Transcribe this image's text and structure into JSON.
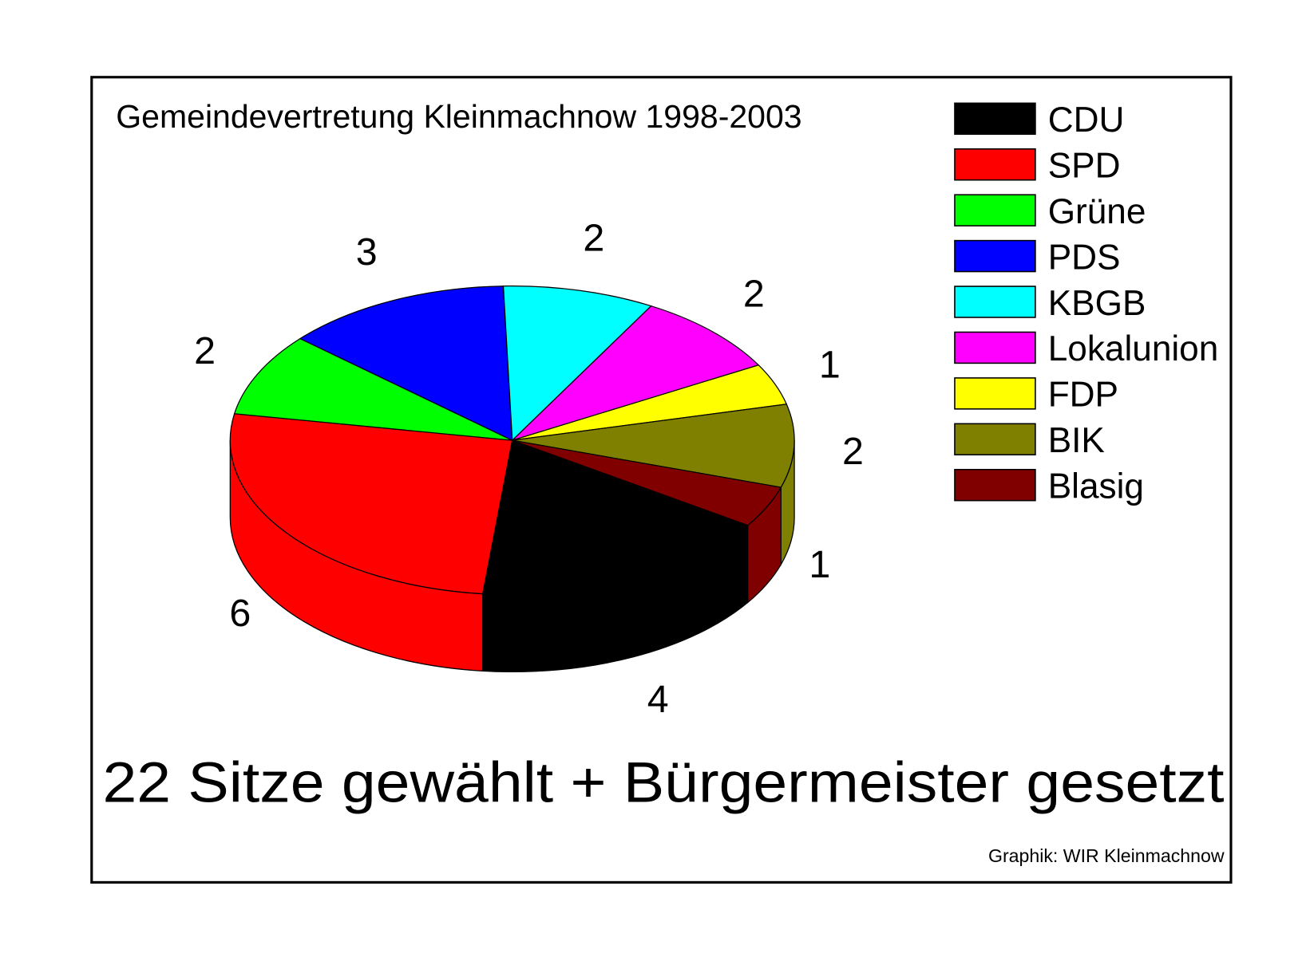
{
  "chart_data": {
    "type": "pie3d",
    "title": "Gemeindevertretung Kleinmachnow 1998-2003",
    "subtitle": "22 Sitze gewählt + Bürgermeister gesetzt",
    "source": "Graphik: WIR Kleinmachnow",
    "categories": [
      "CDU",
      "SPD",
      "Grüne",
      "PDS",
      "KBGB",
      "Lokalunion",
      "FDP",
      "BIK",
      "Blasig"
    ],
    "values": [
      4,
      6,
      2,
      3,
      2,
      2,
      1,
      2,
      1
    ],
    "colors": [
      "#000000",
      "#ff0000",
      "#00ff00",
      "#0000ff",
      "#00ffff",
      "#ff00ff",
      "#ffff00",
      "#808000",
      "#800000"
    ]
  }
}
